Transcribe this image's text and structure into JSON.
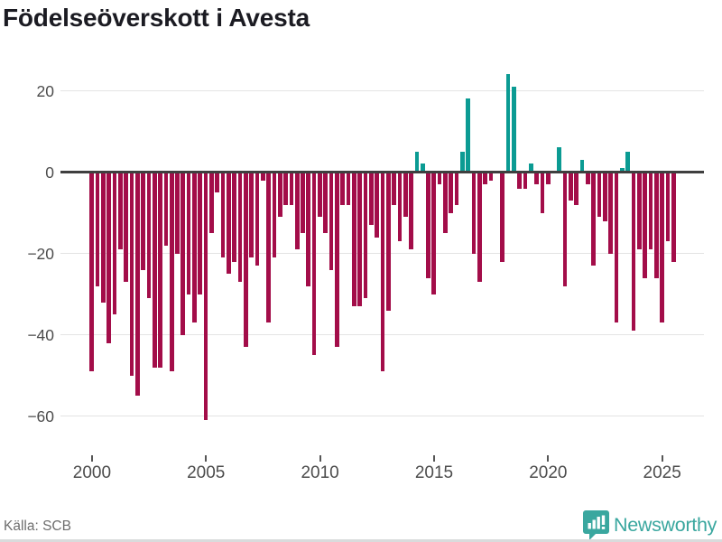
{
  "title": "Födelseöverskott i Avesta",
  "footer": {
    "source": "Källa: SCB",
    "brand": "Newsworthy"
  },
  "colors": {
    "negative": "#a30d49",
    "positive": "#0b9b93",
    "grid": "#e4e4e4",
    "zero_line": "#3f3f3f",
    "axis_text": "#4c4c4c",
    "title_text": "#1b1b22",
    "source_text": "#6e6e6e",
    "brand_teal": "#3aa79f",
    "background": "#ffffff"
  },
  "y_axis": {
    "ticks": [
      {
        "label": "20",
        "value": 20
      },
      {
        "label": "0",
        "value": 0
      },
      {
        "label": "−20",
        "value": -20
      },
      {
        "label": "−40",
        "value": -40
      },
      {
        "label": "−60",
        "value": -60
      }
    ]
  },
  "x_axis": {
    "ticks": [
      {
        "label": "2000"
      },
      {
        "label": "2005"
      },
      {
        "label": "2010"
      },
      {
        "label": "2015"
      },
      {
        "label": "2020"
      },
      {
        "label": "2025"
      }
    ]
  },
  "chart_data": {
    "type": "bar",
    "title": "Födelseöverskott i Avesta",
    "xlabel": "",
    "ylabel": "",
    "frequency": "quarterly",
    "period_start": "2000Q1",
    "period_end": "2025Q3",
    "ylim": [
      -65,
      25
    ],
    "grid": true,
    "legend": "none",
    "color_rule": "negative values dark red, positive values teal",
    "values_by_year": {
      "2000": [
        -49,
        -28,
        -32,
        -42
      ],
      "2001": [
        -35,
        -19,
        -27,
        -50
      ],
      "2002": [
        -55,
        -24,
        -31,
        -48
      ],
      "2003": [
        -48,
        -18,
        -49,
        -20
      ],
      "2004": [
        -40,
        -30,
        -37,
        -30
      ],
      "2005": [
        -61,
        -15,
        -5,
        -21
      ],
      "2006": [
        -25,
        -22,
        -27,
        -43
      ],
      "2007": [
        -21,
        -23,
        -2,
        -37
      ],
      "2008": [
        -21,
        -11,
        -8,
        -8
      ],
      "2009": [
        -19,
        -15,
        -28,
        -45
      ],
      "2010": [
        -11,
        -15,
        -24,
        -43
      ],
      "2011": [
        -8,
        -8,
        -33,
        -33
      ],
      "2012": [
        -31,
        -13,
        -16,
        -49
      ],
      "2013": [
        -34,
        -8,
        -17,
        -11
      ],
      "2014": [
        -19,
        5,
        2,
        -26
      ],
      "2015": [
        -30,
        -3,
        -15,
        -10
      ],
      "2016": [
        -8,
        5,
        18,
        -20
      ],
      "2017": [
        -27,
        -3,
        -2,
        0
      ],
      "2018": [
        -22,
        24,
        21,
        -4
      ],
      "2019": [
        -4,
        2,
        -3,
        -10
      ],
      "2020": [
        -3,
        0,
        6,
        -28
      ],
      "2021": [
        -7,
        -8,
        3,
        -3
      ],
      "2022": [
        -23,
        -11,
        -12,
        -20
      ],
      "2023": [
        -37,
        1,
        5,
        -39
      ],
      "2024": [
        -19,
        -26,
        -19,
        -26
      ],
      "2025": [
        -37,
        -17,
        -22
      ]
    }
  }
}
